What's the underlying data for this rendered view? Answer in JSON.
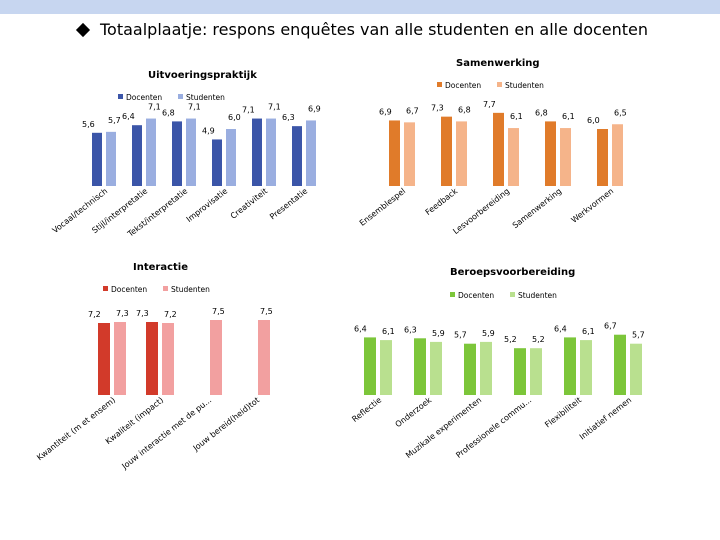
{
  "title": "Totaalplaatje: respons enquêtes van alle studenten en alle docenten",
  "colors": {
    "accent_icon": "#000000"
  },
  "chart_data": [
    {
      "type": "bar",
      "title": "Uitvoeringspraktijk",
      "legend": "top-left",
      "colors": [
        "#3b55a8",
        "#9aaee0"
      ],
      "series": [
        {
          "name": "Docenten",
          "values": [
            5.6,
            6.4,
            6.8,
            4.9,
            7.1,
            6.3
          ]
        },
        {
          "name": "Studenten",
          "values": [
            5.7,
            7.1,
            7.1,
            6.0,
            7.1,
            6.9
          ]
        }
      ],
      "labels": [
        [
          "5,6",
          "5,7"
        ],
        [
          "6,4",
          "7,1"
        ],
        [
          "6,8",
          "7,1"
        ],
        [
          "4,9",
          "6,0"
        ],
        [
          "7,1",
          "7,1"
        ],
        [
          "6,3",
          "6,9"
        ]
      ],
      "categories": [
        "Vocaal/technisch",
        "Stijl/interpretatie",
        "Tekst/interpretatie",
        "Improvisatie",
        "Creativiteit",
        "Presentatie"
      ],
      "ylim": [
        0,
        10
      ]
    },
    {
      "type": "bar",
      "title": "Samenwerking",
      "legend": "top-right",
      "colors": [
        "#e07b2a",
        "#f5b48a"
      ],
      "series": [
        {
          "name": "Docenten",
          "values": [
            6.9,
            7.3,
            7.7,
            6.8,
            6.0
          ]
        },
        {
          "name": "Studenten",
          "values": [
            6.7,
            6.8,
            6.1,
            6.1,
            6.5
          ]
        }
      ],
      "labels": [
        [
          "6,9",
          "6,7"
        ],
        [
          "7,3",
          "6,8"
        ],
        [
          "7,7",
          "6,1"
        ],
        [
          "6,8",
          "6,1"
        ],
        [
          "6,0",
          "6,5"
        ]
      ],
      "categories": [
        "Ensemblespel",
        "Feedback",
        "Lesvoorbereiding",
        "Samenwerking",
        "Werkvormen"
      ],
      "ylim": [
        0,
        10
      ]
    },
    {
      "type": "bar",
      "title": "Interactie",
      "legend": "top-left",
      "colors": [
        "#d23a2a",
        "#f2a0a0"
      ],
      "series": [
        {
          "name": "Docenten",
          "values": [
            7.2,
            7.3,
            null,
            null
          ]
        },
        {
          "name": "Studenten",
          "values": [
            7.3,
            7.2,
            7.5,
            7.5
          ]
        }
      ],
      "labels": [
        [
          "7,2",
          "7,3"
        ],
        [
          "7,3",
          "7,2"
        ],
        [
          "",
          "7,5"
        ],
        [
          "",
          "7,5"
        ]
      ],
      "categories": [
        "Kwantiteit (met ensemble)",
        "Kwaliteit (impact)",
        "Jouw interactie met publiek",
        "Jouw bereid(heid) tot interactie"
      ],
      "category_labels": [
        "Kwantiteit (m et ensem)",
        "Kwaliteit (impact)",
        "Jouw interactie met de pu...",
        "Jouw bereid(heid)tot"
      ],
      "ylim": [
        0,
        10
      ]
    },
    {
      "type": "bar",
      "title": "Beroepsvoorbereiding",
      "legend": "top-right",
      "colors": [
        "#7cc63a",
        "#b9e08f"
      ],
      "series": [
        {
          "name": "Docenten",
          "values": [
            6.4,
            6.3,
            5.7,
            5.2,
            6.4,
            6.7
          ]
        },
        {
          "name": "Studenten",
          "values": [
            6.1,
            5.9,
            5.9,
            5.2,
            6.1,
            5.7
          ]
        }
      ],
      "labels": [
        [
          "6,4",
          "6,1"
        ],
        [
          "6,3",
          "5,9"
        ],
        [
          "5,7",
          "5,9"
        ],
        [
          "5,2",
          "5,2"
        ],
        [
          "6,4",
          "6,1"
        ],
        [
          "6,7",
          "5,7"
        ]
      ],
      "categories": [
        "Reflectie",
        "Onderzoek",
        "Muzikale experimenten",
        "Professionele communicatie",
        "Flexibiliteit",
        "Initiatief nemen"
      ],
      "category_labels": [
        "Reflectie",
        "Onderzoek",
        "Muzikale experimenten",
        "Professionele commu...",
        "Flexibiliteit",
        "Initiatief nemen"
      ],
      "ylim": [
        0,
        10
      ]
    }
  ]
}
